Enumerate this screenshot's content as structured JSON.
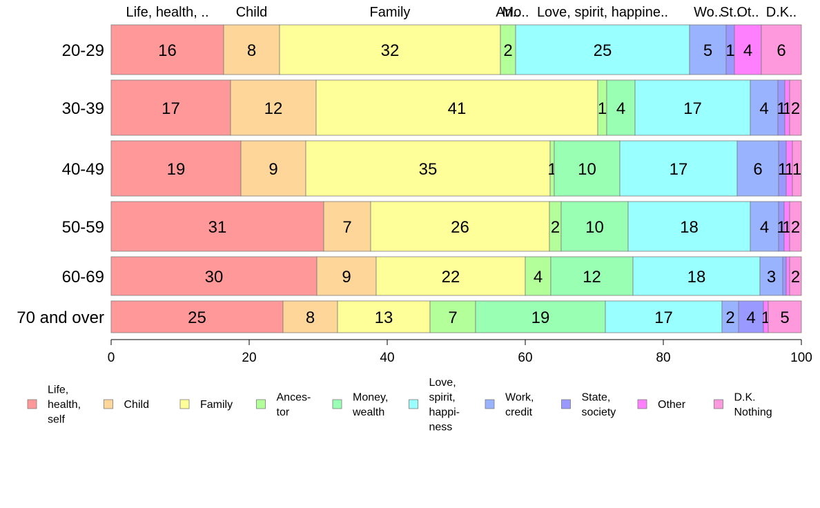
{
  "chart_data": {
    "type": "bar",
    "orientation": "horizontal",
    "stacked": true,
    "title": "",
    "xlabel": "",
    "ylabel": "",
    "xlim": [
      0,
      100
    ],
    "x_ticks": [
      "0",
      "20",
      "40",
      "60",
      "80",
      "100"
    ],
    "categories": [
      "20-29",
      "30-39",
      "40-49",
      "50-59",
      "60-69",
      "70 and over"
    ],
    "top_labels": [
      "Life, health, ..",
      "Child",
      "Family",
      "An..",
      "Mo..",
      "Love, spirit, happine..",
      "Wo..",
      "St..",
      "Ot..",
      "D.K.."
    ],
    "legend_position": "bottom",
    "series": [
      {
        "name": "Life, health, self",
        "legend_lines": [
          "Life,",
          "health,",
          "self"
        ],
        "color": "#ff9999",
        "values": [
          16.3,
          17.3,
          18.8,
          30.8,
          29.8,
          24.9
        ]
      },
      {
        "name": "Child",
        "legend_lines": [
          "Child"
        ],
        "color": "#ffd699",
        "values": [
          8.1,
          12.4,
          9.4,
          6.8,
          8.6,
          7.9
        ]
      },
      {
        "name": "Family",
        "legend_lines": [
          "Family"
        ],
        "color": "#ffff99",
        "values": [
          32.0,
          40.8,
          35.4,
          25.9,
          21.6,
          13.4
        ]
      },
      {
        "name": "Ancestor",
        "legend_lines": [
          "Ances-",
          "tor"
        ],
        "color": "#b3ff99",
        "values": [
          2.2,
          1.3,
          0.6,
          1.7,
          3.7,
          6.6
        ]
      },
      {
        "name": "Money, wealth",
        "legend_lines": [
          "Money,",
          "wealth"
        ],
        "color": "#99ffb3",
        "values": [
          0,
          4.1,
          9.5,
          9.7,
          11.9,
          18.8
        ]
      },
      {
        "name": "Love, spirit, happiness",
        "legend_lines": [
          "Love,",
          "spirit,",
          "happi-",
          "ness"
        ],
        "color": "#99ffff",
        "values": [
          25.2,
          16.7,
          17.0,
          17.7,
          18.4,
          16.9
        ]
      },
      {
        "name": "Work, credit",
        "legend_lines": [
          "Work,",
          "credit"
        ],
        "color": "#99b3ff",
        "values": [
          5.3,
          4.0,
          6.0,
          4.1,
          3.3,
          2.4
        ]
      },
      {
        "name": "State, society",
        "legend_lines": [
          "State,",
          "society"
        ],
        "color": "#9999ff",
        "values": [
          1.2,
          1.0,
          1.1,
          0.8,
          0.5,
          3.6
        ]
      },
      {
        "name": "Other",
        "legend_lines": [
          "Other"
        ],
        "color": "#ff80ff",
        "values": [
          3.9,
          0.7,
          0.9,
          0.8,
          0.5,
          0.7
        ]
      },
      {
        "name": "D.K. Nothing",
        "legend_lines": [
          "D.K.",
          "Nothing"
        ],
        "color": "#ff99dd",
        "values": [
          5.8,
          1.7,
          1.3,
          1.7,
          1.7,
          4.8
        ]
      }
    ],
    "value_labels": [
      [
        "16",
        "8",
        "32",
        "2",
        "",
        "25",
        "5",
        "1",
        "4",
        "6"
      ],
      [
        "17",
        "12",
        "41",
        "1",
        "4",
        "17",
        "4",
        "1",
        "1",
        "2"
      ],
      [
        "19",
        "9",
        "35",
        "1",
        "10",
        "17",
        "6",
        "1",
        "1",
        "1"
      ],
      [
        "31",
        "7",
        "26",
        "2",
        "10",
        "18",
        "4",
        "1",
        "1",
        "2"
      ],
      [
        "30",
        "9",
        "22",
        "4",
        "12",
        "18",
        "3",
        "",
        "",
        "2"
      ],
      [
        "25",
        "8",
        "13",
        "7",
        "19",
        "17",
        "2",
        "4",
        "1",
        "5"
      ]
    ]
  }
}
